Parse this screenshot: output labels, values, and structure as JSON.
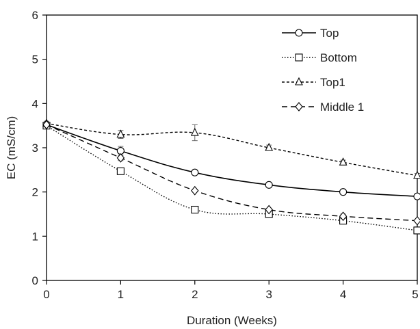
{
  "chart_data": {
    "type": "line",
    "title": "",
    "xlabel": "Duration (Weeks)",
    "ylabel": "EC (mS/cm)",
    "x": [
      0,
      1,
      2,
      3,
      4,
      5
    ],
    "xlim": [
      0,
      5
    ],
    "ylim": [
      0,
      6
    ],
    "xticks": [
      "0",
      "1",
      "2",
      "3",
      "4",
      "5"
    ],
    "yticks": [
      "0",
      "1",
      "2",
      "3",
      "4",
      "5",
      "6"
    ],
    "grid": false,
    "legend_position": "top-right",
    "series": [
      {
        "name": "Top",
        "values": [
          3.52,
          2.93,
          2.44,
          2.16,
          2.0,
          1.9
        ],
        "errors": [
          0.05,
          0.1,
          0.04,
          0.04,
          0.06,
          0.06
        ],
        "line": "solid",
        "marker": "circle",
        "color": "#000000"
      },
      {
        "name": "Bottom",
        "values": [
          3.5,
          2.47,
          1.6,
          1.5,
          1.35,
          1.13
        ],
        "errors": [
          0.05,
          0.06,
          0.06,
          0.05,
          0.06,
          0.08
        ],
        "line": "dotted",
        "marker": "square",
        "color": "#000000"
      },
      {
        "name": "Top1",
        "values": [
          3.55,
          3.3,
          3.34,
          3.0,
          2.67,
          2.37
        ],
        "errors": [
          0.05,
          0.09,
          0.18,
          0.06,
          0.05,
          0.05
        ],
        "line": "dashed",
        "marker": "triangle",
        "color": "#000000"
      },
      {
        "name": "Middle 1",
        "values": [
          3.52,
          2.77,
          2.03,
          1.6,
          1.45,
          1.35
        ],
        "errors": [
          0.05,
          0.06,
          0.04,
          0.04,
          0.05,
          0.04
        ],
        "line": "longdash",
        "marker": "diamond",
        "color": "#000000"
      }
    ]
  }
}
